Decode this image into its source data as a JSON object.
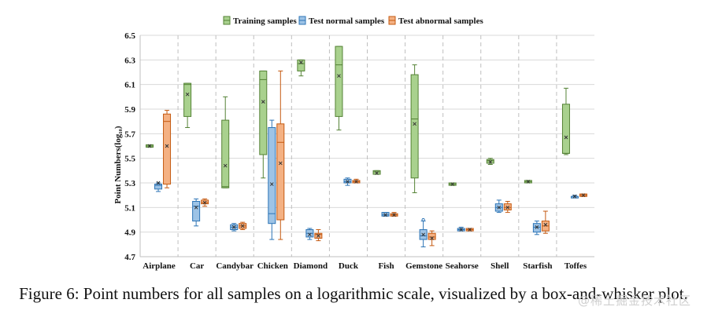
{
  "chart_data": {
    "type": "box",
    "ylabel": "Point Numbers(log₁₀)",
    "ylim": [
      4.7,
      6.5
    ],
    "yticks": [
      "6.5",
      "6.3",
      "6.1",
      "5.9",
      "5.7",
      "5.5",
      "5.3",
      "5.1",
      "4.9",
      "4.7"
    ],
    "grid": true,
    "legend_position": "top-center",
    "categories": [
      "Airplane",
      "Car",
      "Candybar",
      "Chicken",
      "Diamond",
      "Duck",
      "Fish",
      "Gemstone",
      "Seahorse",
      "Shell",
      "Starfish",
      "Toffes"
    ],
    "series": [
      {
        "name": "Training samples",
        "fill": "#a9d18e",
        "stroke": "#548235",
        "boxes": [
          {
            "min": 5.59,
            "q1": 5.59,
            "median": 5.6,
            "q3": 5.61,
            "max": 5.61,
            "mean": 5.6
          },
          {
            "min": 5.75,
            "q1": 5.84,
            "median": 6.1,
            "q3": 6.11,
            "max": 6.11,
            "mean": 6.02
          },
          {
            "min": 5.26,
            "q1": 5.26,
            "median": 5.27,
            "q3": 5.81,
            "max": 6.0,
            "mean": 5.44
          },
          {
            "min": 5.34,
            "q1": 5.53,
            "median": 6.14,
            "q3": 6.21,
            "max": 6.21,
            "mean": 5.96
          },
          {
            "min": 6.17,
            "q1": 6.21,
            "median": 6.27,
            "q3": 6.3,
            "max": 6.3,
            "mean": 6.28
          },
          {
            "min": 5.73,
            "q1": 5.84,
            "median": 6.26,
            "q3": 6.41,
            "max": 6.41,
            "mean": 6.17
          },
          {
            "min": 5.37,
            "q1": 5.37,
            "median": 5.39,
            "q3": 5.4,
            "max": 5.4,
            "mean": 5.38
          },
          {
            "min": 5.22,
            "q1": 5.34,
            "median": 5.82,
            "q3": 6.18,
            "max": 6.26,
            "mean": 5.78
          },
          {
            "min": 5.28,
            "q1": 5.28,
            "median": 5.29,
            "q3": 5.3,
            "max": 5.3,
            "mean": 5.29
          },
          {
            "min": 5.45,
            "q1": 5.46,
            "median": 5.48,
            "q3": 5.49,
            "max": 5.5,
            "mean": 5.47
          },
          {
            "min": 5.3,
            "q1": 5.3,
            "median": 5.31,
            "q3": 5.32,
            "max": 5.32,
            "mean": 5.31
          },
          {
            "min": 5.53,
            "q1": 5.54,
            "median": 5.54,
            "q3": 5.94,
            "max": 6.07,
            "mean": 5.67
          }
        ]
      },
      {
        "name": "Test normal samples",
        "fill": "#9dc3e6",
        "stroke": "#2e75b6",
        "boxes": [
          {
            "min": 5.23,
            "q1": 5.25,
            "median": 5.28,
            "q3": 5.29,
            "max": 5.3,
            "mean": 5.3
          },
          {
            "min": 4.95,
            "q1": 4.99,
            "median": 5.11,
            "q3": 5.15,
            "max": 5.17,
            "mean": 5.1
          },
          {
            "min": 4.91,
            "q1": 4.92,
            "median": 4.94,
            "q3": 4.96,
            "max": 4.97,
            "mean": 4.94
          },
          {
            "min": 4.84,
            "q1": 4.97,
            "median": 5.05,
            "q3": 5.75,
            "max": 5.81,
            "mean": 5.29
          },
          {
            "min": 4.84,
            "q1": 4.86,
            "median": 4.89,
            "q3": 4.92,
            "max": 4.93,
            "mean": 4.88
          },
          {
            "min": 5.28,
            "q1": 5.3,
            "median": 5.31,
            "q3": 5.33,
            "max": 5.34,
            "mean": 5.31
          },
          {
            "min": 5.03,
            "q1": 5.03,
            "median": 5.04,
            "q3": 5.06,
            "max": 5.06,
            "mean": 5.04
          },
          {
            "min": 4.78,
            "q1": 4.84,
            "median": 4.87,
            "q3": 4.92,
            "max": 4.99,
            "mean": 4.88
          },
          {
            "min": 4.91,
            "q1": 4.91,
            "median": 4.92,
            "q3": 4.93,
            "max": 4.94,
            "mean": 4.92
          },
          {
            "min": 5.06,
            "q1": 5.07,
            "median": 5.1,
            "q3": 5.13,
            "max": 5.16,
            "mean": 5.1
          },
          {
            "min": 4.88,
            "q1": 4.9,
            "median": 4.94,
            "q3": 4.97,
            "max": 4.99,
            "mean": 4.94
          },
          {
            "min": 5.18,
            "q1": 5.18,
            "median": 5.19,
            "q3": 5.19,
            "max": 5.2,
            "mean": 5.19
          }
        ]
      },
      {
        "name": "Test abnormal samples",
        "fill": "#f4b183",
        "stroke": "#c55a11",
        "boxes": [
          {
            "min": 5.26,
            "q1": 5.29,
            "median": 5.8,
            "q3": 5.86,
            "max": 5.89,
            "mean": 5.6
          },
          {
            "min": 5.11,
            "q1": 5.13,
            "median": 5.14,
            "q3": 5.16,
            "max": 5.17,
            "mean": 5.14
          },
          {
            "min": 4.92,
            "q1": 4.93,
            "median": 4.95,
            "q3": 4.97,
            "max": 4.98,
            "mean": 4.95
          },
          {
            "min": 4.84,
            "q1": 5.0,
            "median": 5.63,
            "q3": 5.78,
            "max": 6.21,
            "mean": 5.46
          },
          {
            "min": 4.83,
            "q1": 4.85,
            "median": 4.88,
            "q3": 4.89,
            "max": 4.92,
            "mean": 4.87
          },
          {
            "min": 5.3,
            "q1": 5.3,
            "median": 5.31,
            "q3": 5.32,
            "max": 5.33,
            "mean": 5.31
          },
          {
            "min": 5.03,
            "q1": 5.03,
            "median": 5.04,
            "q3": 5.05,
            "max": 5.06,
            "mean": 5.04
          },
          {
            "min": 4.79,
            "q1": 4.84,
            "median": 4.86,
            "q3": 4.89,
            "max": 4.91,
            "mean": 4.85
          },
          {
            "min": 4.91,
            "q1": 4.91,
            "median": 4.92,
            "q3": 4.93,
            "max": 4.93,
            "mean": 4.92
          },
          {
            "min": 5.06,
            "q1": 5.08,
            "median": 5.1,
            "q3": 5.13,
            "max": 5.15,
            "mean": 5.1
          },
          {
            "min": 4.89,
            "q1": 4.91,
            "median": 4.95,
            "q3": 4.99,
            "max": 5.07,
            "mean": 4.96
          },
          {
            "min": 5.19,
            "q1": 5.19,
            "median": 5.2,
            "q3": 5.21,
            "max": 5.21,
            "mean": 5.2
          }
        ]
      }
    ],
    "outliers": [
      {
        "series": 1,
        "category": "Gemstone",
        "values": [
          5.0
        ]
      }
    ]
  },
  "caption": "Figure 6: Point numbers for all samples on a logarithmic scale, visualized by a box-and-whisker plot.",
  "watermark": "@稀土掘金技术社区"
}
